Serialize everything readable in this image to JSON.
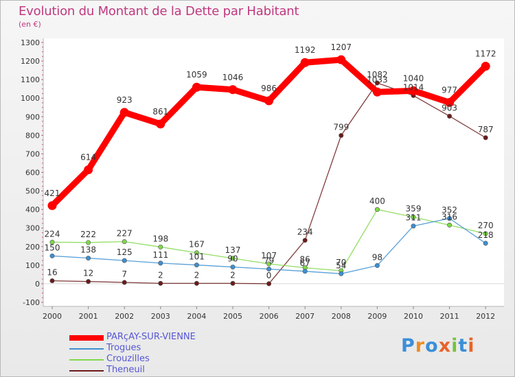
{
  "title": "Evolution du Montant de la Dette par Habitant",
  "subtitle": "(en €)",
  "brand": "Proxiti",
  "chart_data": {
    "type": "line",
    "title": "Evolution du Montant de la Dette par Habitant",
    "ylabel": "(en €)",
    "xlabel": "",
    "x": [
      "2000",
      "2001",
      "2002",
      "2003",
      "2004",
      "2005",
      "2006",
      "2007",
      "2008",
      "2009",
      "2010",
      "2011",
      "2012"
    ],
    "ylim": [
      -100,
      1300
    ],
    "yticks": [
      -100,
      0,
      100,
      200,
      300,
      400,
      500,
      600,
      700,
      800,
      900,
      1000,
      1100,
      1200,
      1300
    ],
    "grid": false,
    "legend": "bottom-left",
    "series": [
      {
        "name": "PARçAY-SUR-VIENNE",
        "color": "#ff0000",
        "values": [
          421,
          614,
          923,
          861,
          1059,
          1046,
          986,
          1192,
          1207,
          1033,
          1040,
          977,
          1172
        ]
      },
      {
        "name": "Trogues",
        "color": "#3d8fd1",
        "values": [
          150,
          138,
          125,
          111,
          101,
          90,
          79,
          67,
          54,
          98,
          311,
          352,
          218
        ]
      },
      {
        "name": "Crouzilles",
        "color": "#7fd84a",
        "values": [
          224,
          222,
          227,
          198,
          167,
          137,
          107,
          86,
          70,
          400,
          359,
          316,
          270
        ]
      },
      {
        "name": "Theneuil",
        "color": "#6b1a1a",
        "values": [
          16,
          12,
          7,
          2,
          2,
          2,
          0,
          234,
          799,
          1082,
          1014,
          903,
          787
        ]
      }
    ]
  }
}
